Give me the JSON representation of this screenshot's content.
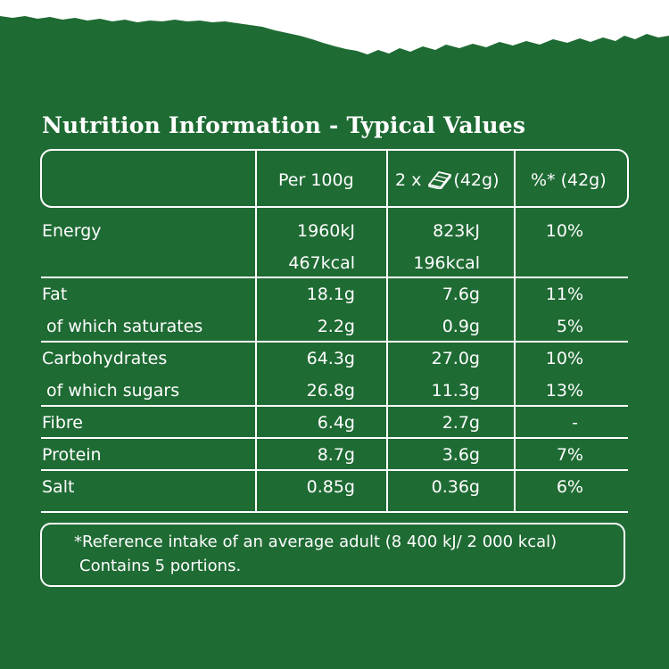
{
  "title": "Nutrition Information - Typical Values",
  "headers": {
    "per100": "Per 100g",
    "portion_prefix": "2 x",
    "portion_suffix": "(42g)",
    "ri": "%* (42g)"
  },
  "portion_icon": "chocolate-bar-icon",
  "rows": {
    "energy": {
      "label": "Energy",
      "per100_kj": "1960kJ",
      "per100_kcal": "467kcal",
      "portion_kj": "823kJ",
      "portion_kcal": "196kcal",
      "ri": "10%"
    },
    "fat": {
      "label": "Fat",
      "per100": "18.1g",
      "portion": "7.6g",
      "ri": "11%"
    },
    "saturates": {
      "label": "of which saturates",
      "per100": "2.2g",
      "portion": "0.9g",
      "ri": "5%"
    },
    "carbs": {
      "label": "Carbohydrates",
      "per100": "64.3g",
      "portion": "27.0g",
      "ri": "10%"
    },
    "sugars": {
      "label": "of which sugars",
      "per100": "26.8g",
      "portion": "11.3g",
      "ri": "13%"
    },
    "fibre": {
      "label": "Fibre",
      "per100": "6.4g",
      "portion": "2.7g",
      "ri": "-"
    },
    "protein": {
      "label": "Protein",
      "per100": "8.7g",
      "portion": "3.6g",
      "ri": "7%"
    },
    "salt": {
      "label": "Salt",
      "per100": "0.85g",
      "portion": "0.36g",
      "ri": "6%"
    }
  },
  "footnote": {
    "line1": "*Reference intake of an average adult (8 400 kJ/ 2 000 kcal)",
    "line2": "Contains 5 portions."
  },
  "colors": {
    "background": "#1f6b34",
    "paper": "#ffffff"
  }
}
